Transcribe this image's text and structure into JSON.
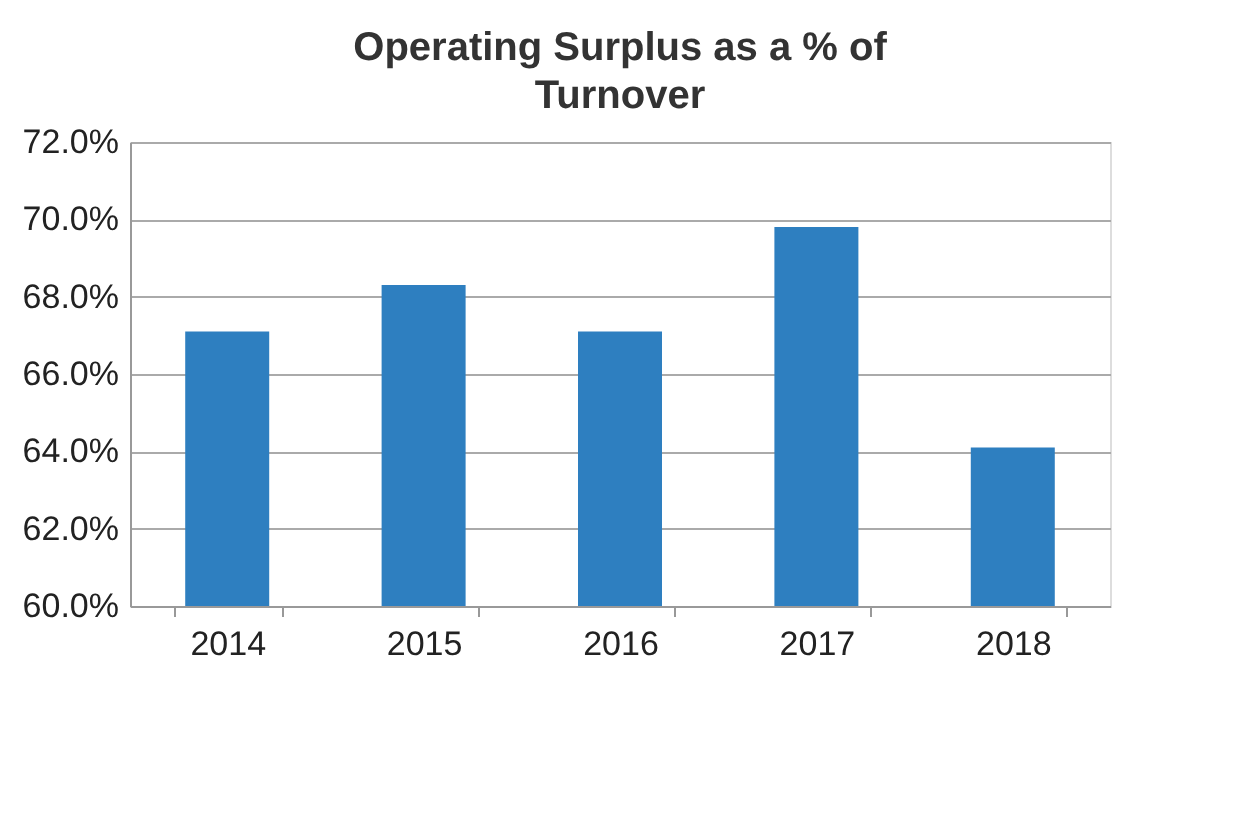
{
  "chart_data": {
    "type": "bar",
    "title": "Operating Surplus as a % of Turnover",
    "categories": [
      "2014",
      "2015",
      "2016",
      "2017",
      "2018"
    ],
    "values": [
      67.1,
      68.3,
      67.1,
      69.8,
      64.1
    ],
    "color": "#2e7fc0",
    "ylim": [
      60,
      72
    ],
    "yticks": [
      {
        "value": 60,
        "label": "60.0%"
      },
      {
        "value": 62,
        "label": "62.0%"
      },
      {
        "value": 64,
        "label": "64.0%"
      },
      {
        "value": 66,
        "label": "66.0%"
      },
      {
        "value": 68,
        "label": "68.0%"
      },
      {
        "value": 70,
        "label": "70.0%"
      },
      {
        "value": 72,
        "label": "72.0%"
      }
    ],
    "grid": "y"
  }
}
